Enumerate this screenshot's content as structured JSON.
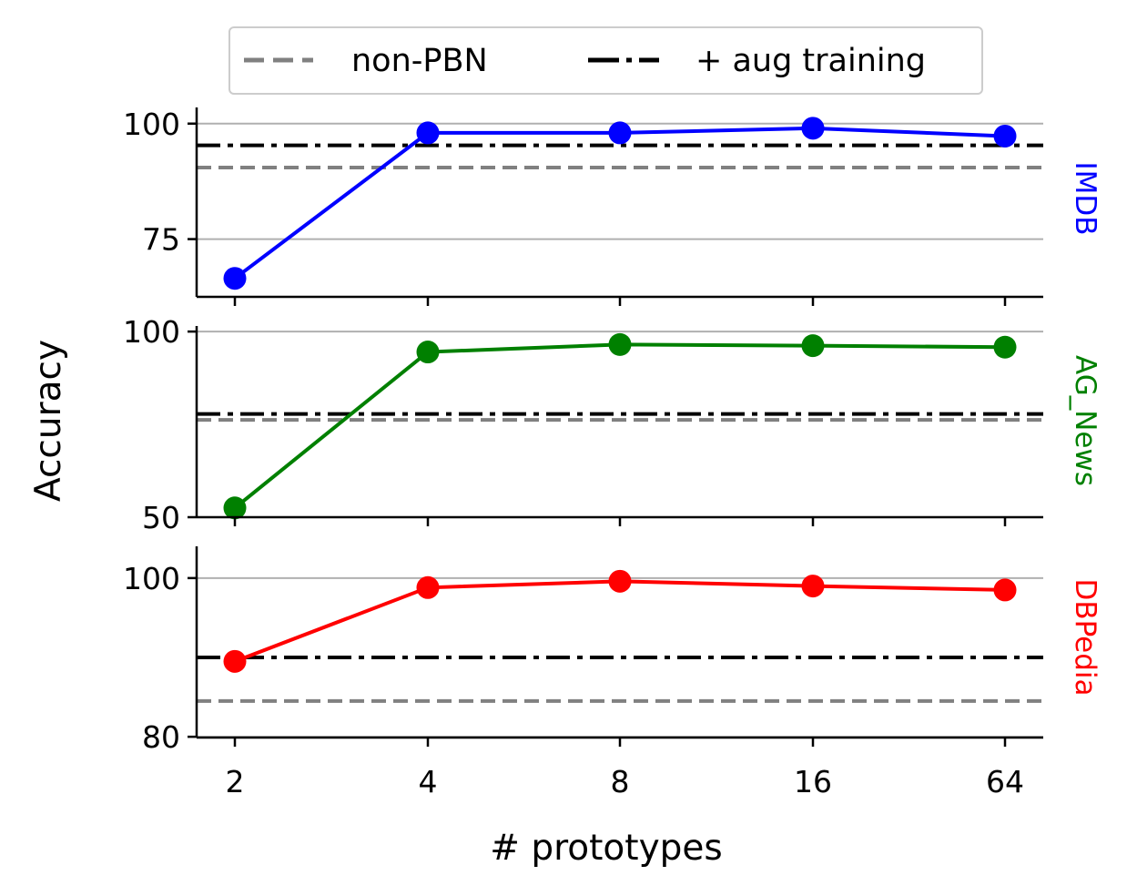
{
  "chart_data": {
    "type": "line",
    "xlabel": "# prototypes",
    "ylabel": "Accuracy",
    "categories": [
      "2",
      "4",
      "8",
      "16",
      "64"
    ],
    "legend": {
      "placement": "top-center",
      "entries": [
        {
          "label": "non-PBN",
          "style": "dashed",
          "color": "#808080"
        },
        {
          "label": "+ aug training",
          "style": "dashdot",
          "color": "#000000"
        }
      ]
    },
    "grid": "horizontal",
    "panels": [
      {
        "name": "IMDB",
        "color": "#0000ff",
        "values": [
          66.5,
          98.0,
          98.0,
          99.0,
          97.3
        ],
        "non_pbn": 90.5,
        "aug_training": 95.3,
        "ylim": [
          62.5,
          103.5
        ],
        "yticks": [
          75,
          100
        ],
        "ytick_labels": [
          "75",
          "100"
        ]
      },
      {
        "name": "AG_News",
        "color": "#008000",
        "values": [
          52.5,
          94.5,
          96.5,
          96.2,
          95.8
        ],
        "non_pbn": 76.2,
        "aug_training": 77.8,
        "ylim": [
          50,
          101.5
        ],
        "yticks": [
          50,
          100
        ],
        "ytick_labels": [
          "50",
          "100"
        ]
      },
      {
        "name": "DBPedia",
        "color": "#ff0000",
        "values": [
          89.5,
          98.8,
          99.6,
          99.0,
          98.5
        ],
        "non_pbn": 84.5,
        "aug_training": 90.0,
        "ylim": [
          79.9,
          104.0
        ],
        "yticks": [
          80,
          100
        ],
        "ytick_labels": [
          "80",
          "100"
        ]
      }
    ]
  }
}
